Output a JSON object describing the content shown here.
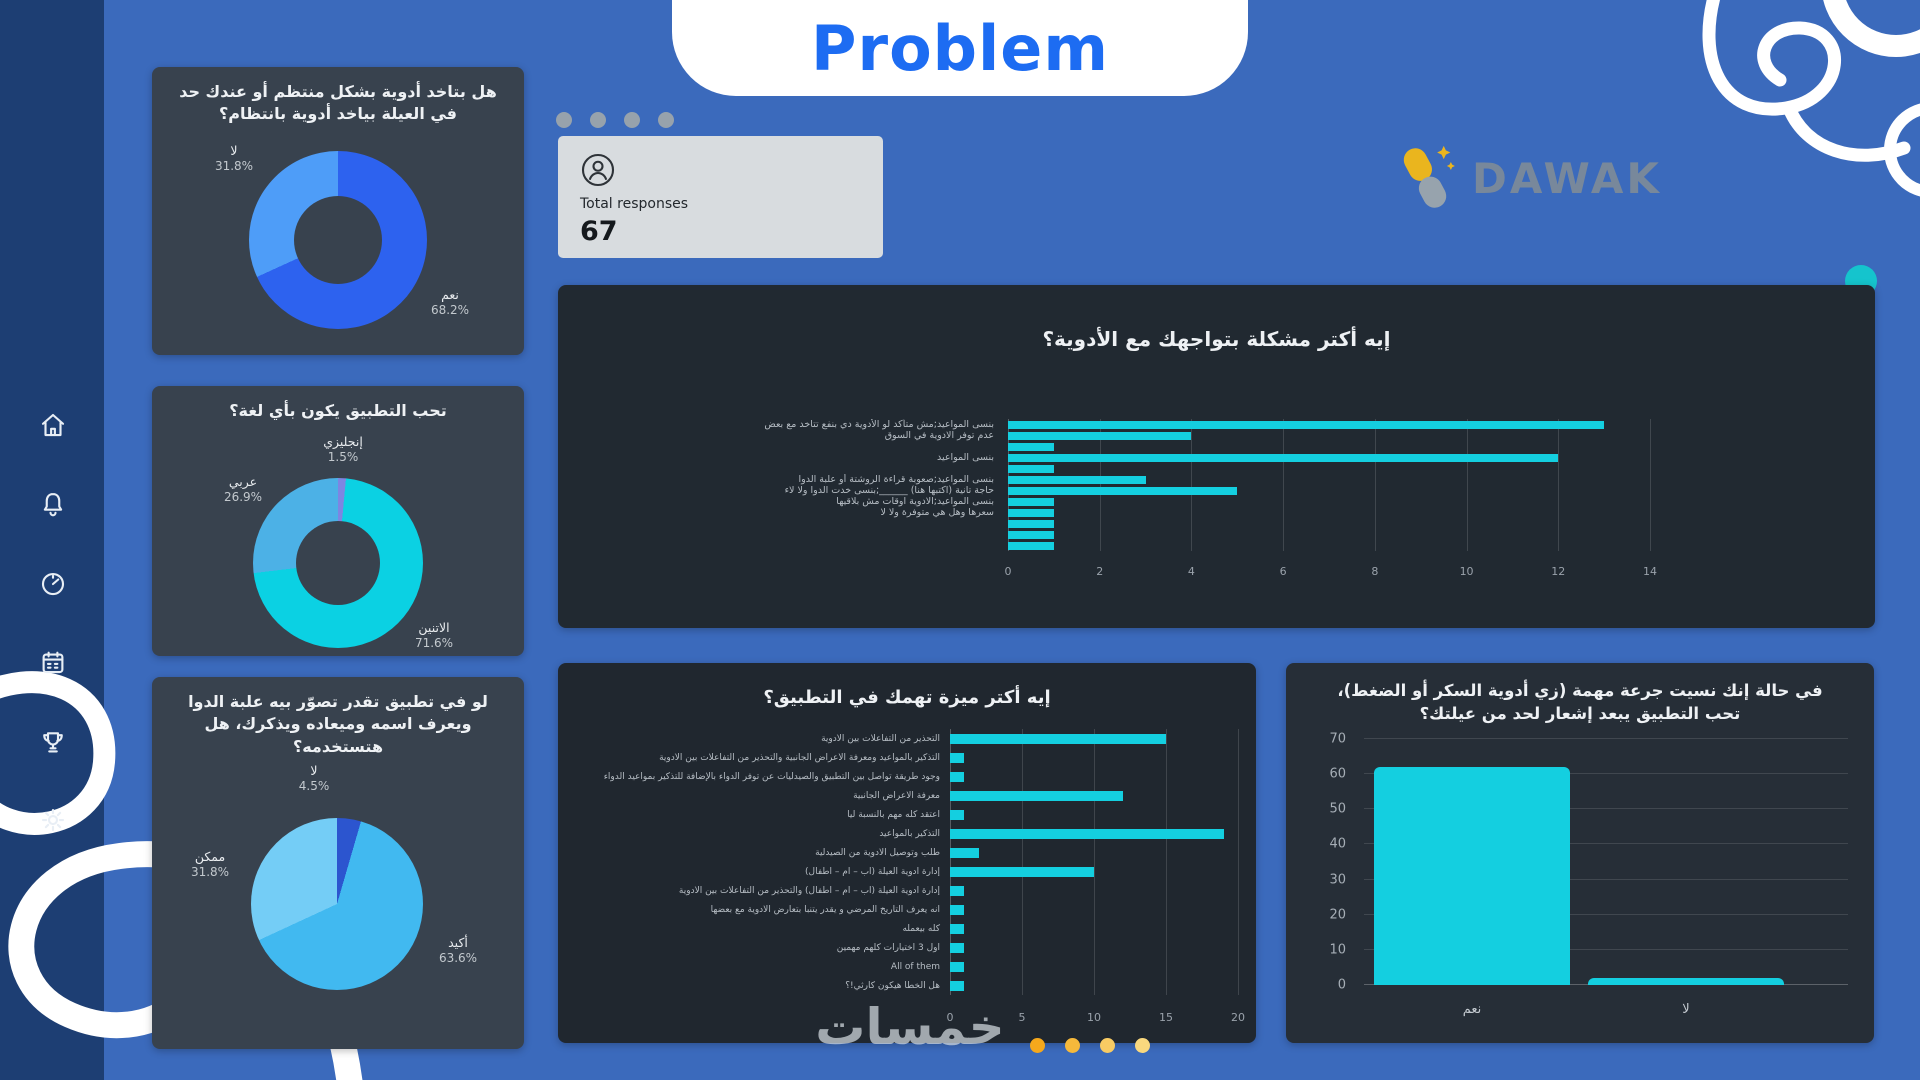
{
  "page": {
    "title": "Problem",
    "brand": "DAWAK",
    "watermark": "خمسات"
  },
  "total": {
    "label": "Total responses",
    "value": "67"
  },
  "sidebar": {
    "items": [
      "home-icon",
      "bell-icon",
      "gauge-icon",
      "calendar-icon",
      "trophy-icon",
      "gear-icon"
    ]
  },
  "colors": {
    "background": "#3b6abc",
    "sidebar": "#1d3e73",
    "card_slate": "#38424e",
    "panel_dark": "#212931",
    "accent_cyan": "#14cfe0",
    "accent_teal": "#15c4cd",
    "accent_blue": "#2d62ef",
    "accent_orange": "#f2ae25",
    "title_blue": "#1d6cf2"
  },
  "chart_data": [
    {
      "id": "regular_medication",
      "type": "pie",
      "donut": true,
      "title": "هل بتاخد أدوية بشكل منتظم أو عندك حد في العيلة بياخد أدوية بانتظام؟",
      "slices": [
        {
          "label": "نعم",
          "pct": "68.2%",
          "value": 68.2,
          "color": "#2d62ef"
        },
        {
          "label": "لا",
          "pct": "31.8%",
          "value": 31.8,
          "color": "#4e9df8"
        }
      ]
    },
    {
      "id": "app_language",
      "type": "pie",
      "donut": true,
      "title": "تحب التطبيق يكون بأي لغة؟",
      "slices": [
        {
          "label": "إنجليزي",
          "pct": "1.5%",
          "value": 1.5,
          "color": "#7d86e2"
        },
        {
          "label": "الاتنين",
          "pct": "71.6%",
          "value": 71.6,
          "color": "#0bd1e3"
        },
        {
          "label": "عربي",
          "pct": "26.9%",
          "value": 26.9,
          "color": "#4cb1e6"
        }
      ]
    },
    {
      "id": "camera_app_usage",
      "type": "pie",
      "donut": false,
      "title": "لو في تطبيق تقدر تصوّر بيه علبة الدوا ويعرف اسمه وميعاده ويذكرك، هل هتستخدمه؟",
      "slices": [
        {
          "label": "لا",
          "pct": "4.5%",
          "value": 4.5,
          "color": "#2c55cf"
        },
        {
          "label": "أكيد",
          "pct": "63.6%",
          "value": 63.6,
          "color": "#41b9f0"
        },
        {
          "label": "ممكن",
          "pct": "31.8%",
          "value": 31.8,
          "color": "#74cdf6"
        }
      ]
    },
    {
      "id": "biggest_problem",
      "type": "bar",
      "orientation": "horizontal",
      "title": "إيه أكتر مشكلة بتواجهك مع الأدوية؟",
      "bar_color": "#14cfe0",
      "xlim": [
        0,
        14
      ],
      "ticks": [
        0,
        2,
        4,
        6,
        8,
        10,
        12,
        14
      ],
      "rows": [
        {
          "label": "بنسى المواعيد;مش متأكد لو الأدوية دي بنفع تتاخد مع بعض",
          "value": 13
        },
        {
          "label": "عدم توفر الادوية في السوق",
          "value": 4
        },
        {
          "label": "",
          "value": 1
        },
        {
          "label": "بنسى المواعيد",
          "value": 12
        },
        {
          "label": "",
          "value": 1
        },
        {
          "label": "بنسى المواعيد;صعوبة قراءة الروشتة أو علبة الدوا",
          "value": 3
        },
        {
          "label": "حاجة تانية (اكتبها هنا) ______;بنسى خدت الدوا ولا لاء",
          "value": 5
        },
        {
          "label": "بنسى المواعيد;الادوية اوقات مش بلاقيها",
          "value": 1
        },
        {
          "label": "سعرها وهل هي متوفرة ولا لا",
          "value": 1
        },
        {
          "label": "",
          "value": 1
        },
        {
          "label": "",
          "value": 1
        },
        {
          "label": "",
          "value": 1
        }
      ]
    },
    {
      "id": "top_feature",
      "type": "bar",
      "orientation": "horizontal",
      "title": "إيه أكتر ميزة تهمك في التطبيق؟",
      "bar_color": "#14cfe0",
      "xlim": [
        0,
        20
      ],
      "ticks": [
        0,
        5,
        10,
        15,
        20
      ],
      "rows": [
        {
          "label": "التحذير من التفاعلات بين الأدوية",
          "value": 15
        },
        {
          "label": "التذكير بالمواعيد ومعرفة الأعراض الجانبية والتحذير من التفاعلات بين الأدوية",
          "value": 1
        },
        {
          "label": "وجود طريقة تواصل بين التطبيق والصيدليات عن توفر الدواء بالإضافة للتذكير بمواعيد الدواء",
          "value": 1
        },
        {
          "label": "معرفة الأعراض الجانبية",
          "value": 12
        },
        {
          "label": "اعتقد كله مهم بالنسبة ليا",
          "value": 1
        },
        {
          "label": "التذكير بالمواعيد",
          "value": 19
        },
        {
          "label": "طلب وتوصيل الأدوية من الصيدلية",
          "value": 2
        },
        {
          "label": "إدارة أدوية العيلة (أب – أم – أطفال)",
          "value": 10
        },
        {
          "label": "إدارة أدوية العيلة (أب – أم – أطفال) والتحذير من التفاعلات بين الأدوية",
          "value": 1
        },
        {
          "label": "انه يعرف التاريخ المرضي و يقدر يتنبأ بتعارض الادوية مع بعضها",
          "value": 1
        },
        {
          "label": "كله بيعمله",
          "value": 1
        },
        {
          "label": "اول 3 اختيارات كلهم مهمين",
          "value": 1
        },
        {
          "label": "All of them",
          "value": 1
        },
        {
          "label": "هل الخطأ هيكون كارثي!؟",
          "value": 1
        }
      ]
    },
    {
      "id": "notify_family",
      "type": "bar",
      "orientation": "vertical",
      "title": "في حالة إنك نسيت جرعة مهمة (زي أدوية السكر أو الضغط)، تحب التطبيق يبعد إشعار لحد من عيلتك؟",
      "bar_color": "#14cfe0",
      "categories": [
        "نعم",
        "لا"
      ],
      "values": [
        62,
        2
      ],
      "ylim": [
        0,
        70
      ],
      "ticks": [
        0,
        10,
        20,
        30,
        40,
        50,
        60,
        70
      ]
    }
  ]
}
